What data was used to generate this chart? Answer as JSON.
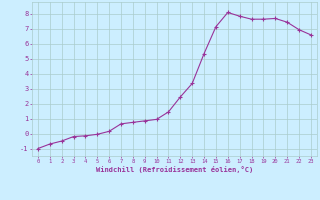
{
  "x": [
    0,
    1,
    2,
    3,
    4,
    5,
    6,
    7,
    8,
    9,
    10,
    11,
    12,
    13,
    14,
    15,
    16,
    17,
    18,
    19,
    20,
    21,
    22,
    23
  ],
  "y": [
    -1.0,
    -0.7,
    -0.5,
    -0.2,
    -0.15,
    -0.05,
    0.15,
    0.65,
    0.75,
    0.85,
    0.95,
    1.45,
    2.45,
    3.35,
    5.35,
    7.15,
    8.1,
    7.85,
    7.65,
    7.65,
    7.7,
    7.45,
    6.95,
    6.6
  ],
  "xlabel": "Windchill (Refroidissement éolien,°C)",
  "xlim": [
    -0.5,
    23.5
  ],
  "ylim": [
    -1.5,
    8.8
  ],
  "yticks": [
    -1,
    0,
    1,
    2,
    3,
    4,
    5,
    6,
    7,
    8
  ],
  "xticks": [
    0,
    1,
    2,
    3,
    4,
    5,
    6,
    7,
    8,
    9,
    10,
    11,
    12,
    13,
    14,
    15,
    16,
    17,
    18,
    19,
    20,
    21,
    22,
    23
  ],
  "line_color": "#993399",
  "marker": "+",
  "bg_color": "#cceeff",
  "grid_color": "#aacccc",
  "font_color": "#993399"
}
